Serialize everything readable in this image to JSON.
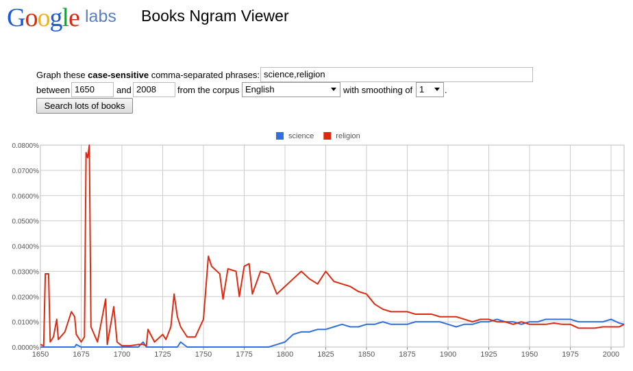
{
  "header": {
    "logo": "Google",
    "logo_suffix": "labs",
    "title": "Books Ngram Viewer"
  },
  "form": {
    "prefix": "Graph these",
    "emphasis": "case-sensitive",
    "suffix": "comma-separated phrases:",
    "phrases": "science,religion",
    "between_label": "between",
    "start_year": "1650",
    "and_label": "and",
    "end_year": "2008",
    "corpus_label": "from the corpus",
    "corpus": "English",
    "smoothing_label": "with smoothing of",
    "smoothing": "1",
    "period": ".",
    "button": "Search lots of books"
  },
  "chart_data": {
    "type": "line",
    "x": [
      1650,
      1652,
      1653,
      1655,
      1656,
      1658,
      1660,
      1661,
      1665,
      1669,
      1671,
      1672,
      1675,
      1677,
      1678,
      1679,
      1680,
      1681,
      1685,
      1690,
      1691,
      1695,
      1697,
      1700,
      1705,
      1710,
      1713,
      1715,
      1716,
      1720,
      1725,
      1727,
      1730,
      1732,
      1734,
      1736,
      1740,
      1745,
      1750,
      1753,
      1755,
      1760,
      1762,
      1765,
      1770,
      1772,
      1775,
      1778,
      1780,
      1785,
      1790,
      1795,
      1800,
      1805,
      1810,
      1815,
      1820,
      1825,
      1830,
      1835,
      1840,
      1845,
      1850,
      1855,
      1860,
      1865,
      1870,
      1875,
      1880,
      1885,
      1890,
      1895,
      1900,
      1905,
      1910,
      1915,
      1920,
      1925,
      1930,
      1935,
      1940,
      1945,
      1950,
      1955,
      1960,
      1965,
      1970,
      1975,
      1980,
      1985,
      1990,
      1995,
      2000,
      2005,
      2008
    ],
    "series": [
      {
        "name": "science",
        "color": "#2f6fde",
        "values": [
          0,
          0,
          0,
          0,
          0,
          0,
          0,
          0,
          0,
          0,
          0,
          0.001,
          0,
          0,
          0,
          0,
          0,
          0,
          0,
          0,
          0,
          0,
          0,
          0,
          0,
          0,
          0.002,
          0,
          0,
          0,
          0,
          0,
          0,
          0,
          0,
          0.002,
          0,
          0,
          0,
          0,
          0,
          0,
          0,
          0,
          0,
          0,
          0,
          0,
          0,
          0,
          0,
          0.001,
          0.002,
          0.005,
          0.006,
          0.006,
          0.007,
          0.007,
          0.008,
          0.009,
          0.008,
          0.008,
          0.009,
          0.009,
          0.01,
          0.009,
          0.009,
          0.009,
          0.01,
          0.01,
          0.01,
          0.01,
          0.009,
          0.008,
          0.009,
          0.009,
          0.01,
          0.01,
          0.011,
          0.01,
          0.01,
          0.009,
          0.01,
          0.01,
          0.011,
          0.011,
          0.011,
          0.011,
          0.01,
          0.01,
          0.01,
          0.01,
          0.011,
          0.0095,
          0.009
        ]
      },
      {
        "name": "religion",
        "color": "#dc2a10",
        "values": [
          0.001,
          0.0005,
          0.029,
          0.029,
          0.002,
          0.004,
          0.011,
          0.003,
          0.006,
          0.014,
          0.012,
          0.005,
          0.002,
          0.004,
          0.077,
          0.075,
          0.08,
          0.008,
          0.002,
          0.019,
          0.001,
          0.016,
          0.002,
          0.0005,
          0.0005,
          0.001,
          0.001,
          0.0005,
          0.007,
          0.002,
          0.005,
          0.003,
          0.008,
          0.021,
          0.012,
          0.008,
          0.004,
          0.004,
          0.011,
          0.036,
          0.032,
          0.029,
          0.019,
          0.031,
          0.03,
          0.02,
          0.032,
          0.033,
          0.021,
          0.03,
          0.029,
          0.021,
          0.024,
          0.027,
          0.03,
          0.027,
          0.025,
          0.03,
          0.026,
          0.025,
          0.024,
          0.022,
          0.021,
          0.017,
          0.015,
          0.014,
          0.014,
          0.014,
          0.013,
          0.013,
          0.013,
          0.012,
          0.012,
          0.012,
          0.011,
          0.01,
          0.011,
          0.011,
          0.01,
          0.01,
          0.009,
          0.01,
          0.009,
          0.009,
          0.009,
          0.0095,
          0.009,
          0.009,
          0.0075,
          0.0075,
          0.0075,
          0.008,
          0.008,
          0.008,
          0.009
        ]
      }
    ],
    "xlim": [
      1650,
      2008
    ],
    "xticks": [
      1650,
      1675,
      1700,
      1725,
      1750,
      1775,
      1800,
      1825,
      1850,
      1875,
      1900,
      1925,
      1950,
      1975,
      2000
    ],
    "ylim": [
      0,
      0.08
    ],
    "yticks": [
      {
        "value": 0,
        "label": "0.0000%"
      },
      {
        "value": 0.01,
        "label": "0.0100%"
      },
      {
        "value": 0.02,
        "label": "0.0200%"
      },
      {
        "value": 0.03,
        "label": "0.0300%"
      },
      {
        "value": 0.04,
        "label": "0.0400%"
      },
      {
        "value": 0.05,
        "label": "0.0500%"
      },
      {
        "value": 0.06,
        "label": "0.0600%"
      },
      {
        "value": 0.07,
        "label": "0.0700%"
      },
      {
        "value": 0.08,
        "label": "0.0800%"
      }
    ],
    "grid": true,
    "legend": "top"
  }
}
